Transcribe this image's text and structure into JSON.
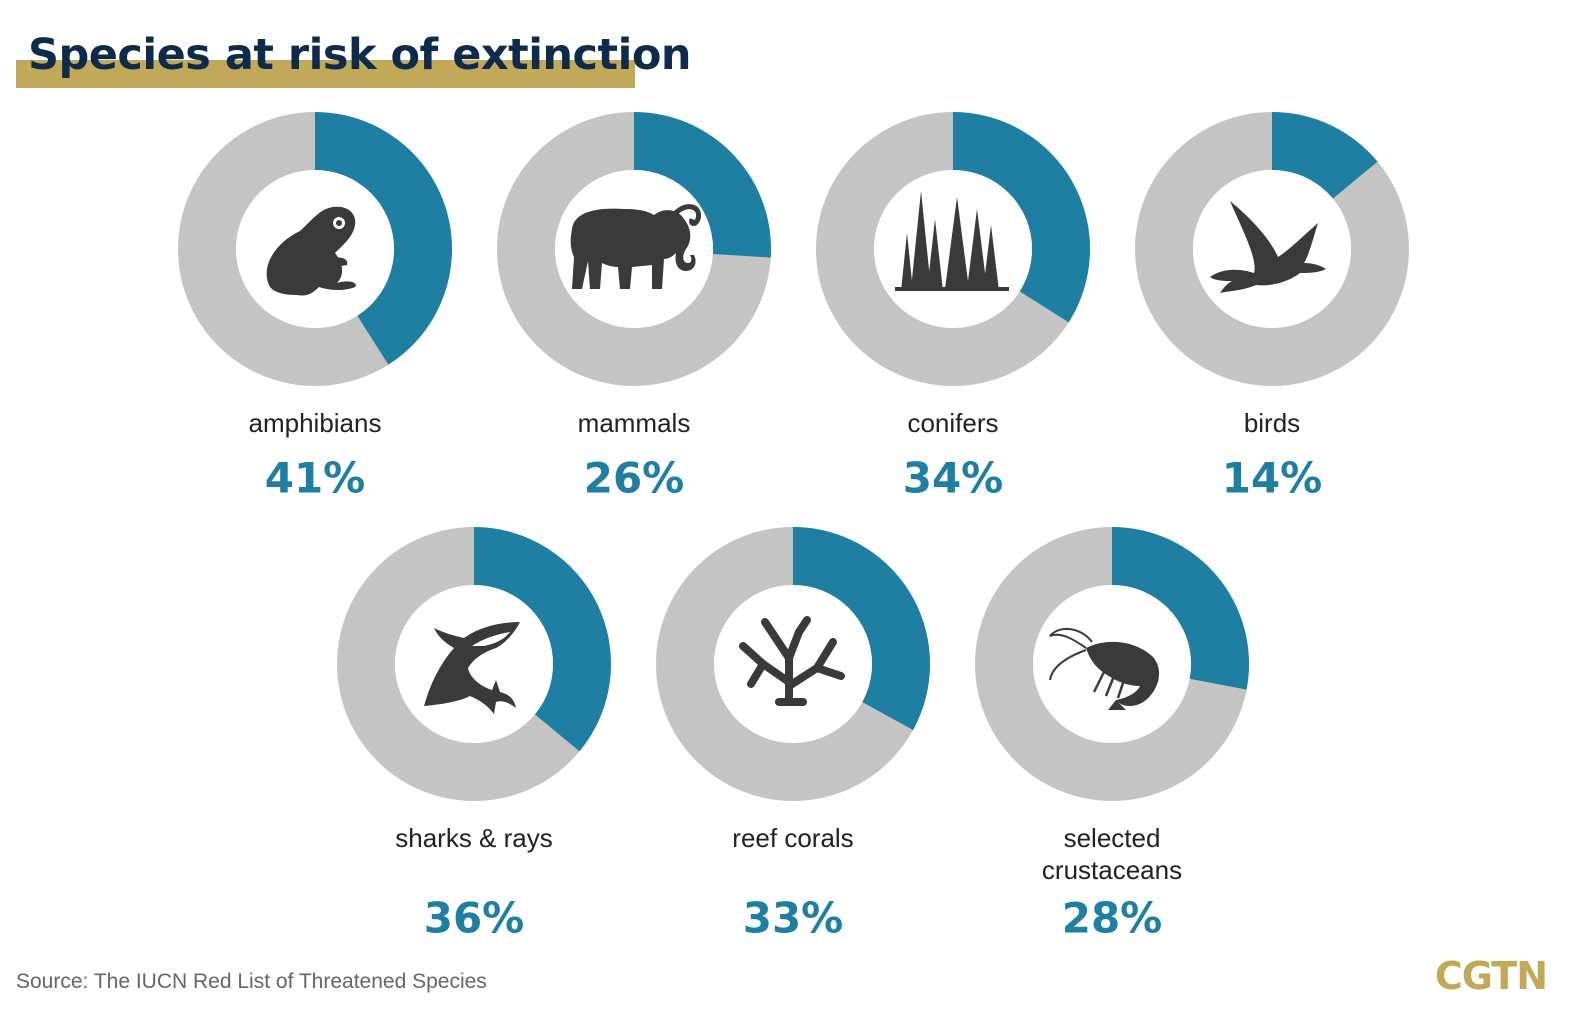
{
  "colors": {
    "accent": "#1f7fa3",
    "track": "#c4c4c4",
    "title": "#0f2b4c",
    "title_bar": "#c2a95a",
    "icon": "#3a3a3a"
  },
  "header": {
    "title": "Species at risk of extinction"
  },
  "footer": {
    "source": "Source: The IUCN Red List of Threatened Species",
    "logo": "CGTN"
  },
  "chart_data": {
    "type": "pie",
    "title": "Species at risk of extinction",
    "items": [
      {
        "label": [
          "amphibians"
        ],
        "value": 41,
        "value_label": "41%",
        "icon": "frog-icon"
      },
      {
        "label": [
          "mammals"
        ],
        "value": 26,
        "value_label": "26%",
        "icon": "elephant-icon"
      },
      {
        "label": [
          "conifers"
        ],
        "value": 34,
        "value_label": "34%",
        "icon": "conifer-trees-icon"
      },
      {
        "label": [
          "birds"
        ],
        "value": 14,
        "value_label": "14%",
        "icon": "bird-icon"
      },
      {
        "label": [
          "sharks & rays"
        ],
        "value": 36,
        "value_label": "36%",
        "icon": "shark-icon"
      },
      {
        "label": [
          "reef corals"
        ],
        "value": 33,
        "value_label": "33%",
        "icon": "coral-icon"
      },
      {
        "label": [
          "selected",
          "crustaceans"
        ],
        "value": 28,
        "value_label": "28%",
        "icon": "shrimp-icon"
      }
    ]
  }
}
